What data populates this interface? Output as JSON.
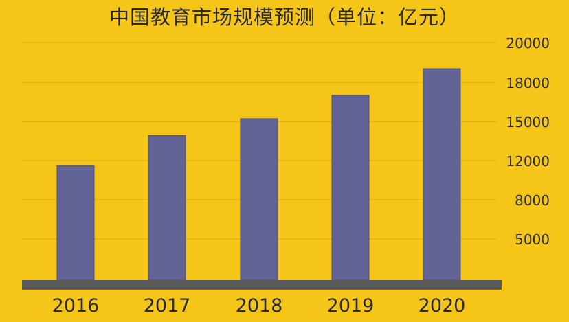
{
  "chart_data": {
    "type": "bar",
    "title": "中国教育市场规模预测（单位：亿元）",
    "categories": [
      "2016",
      "2017",
      "2018",
      "2019",
      "2020"
    ],
    "values": [
      10300,
      13000,
      14500,
      16600,
      19000
    ],
    "y_ticks": [
      "20000",
      "18000",
      "15000",
      "12000",
      "8000",
      "5000"
    ],
    "y_axis_position": "right",
    "grid": true,
    "legend": "none",
    "colors": {
      "background": "#F5C518",
      "bar": "#626496",
      "baseline": "#5A5A5A",
      "grid": "#D9A50F",
      "text": "#2A2A2A"
    }
  }
}
